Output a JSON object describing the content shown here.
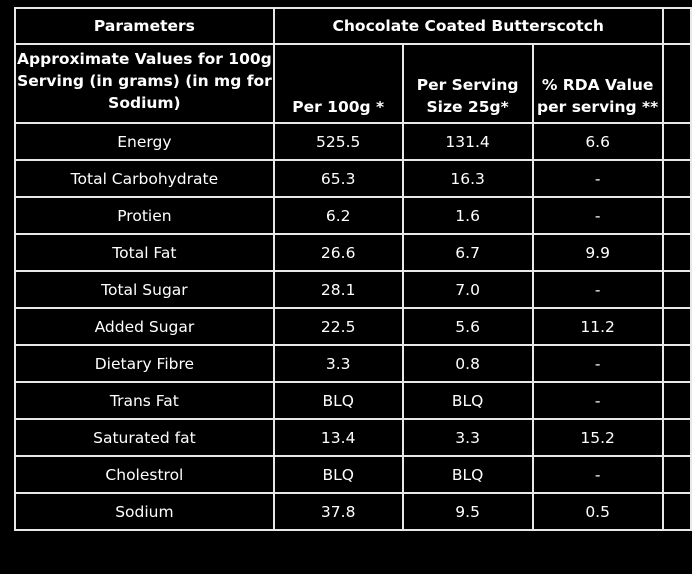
{
  "header": {
    "parameters": "Parameters",
    "product": "Chocolate Coated Butterscotch",
    "approx_note": "Approximate Values for 100g\nServing (in grams) (in mg for\nSodium)",
    "per_100g": "Per 100g *",
    "per_serving": "Per Serving\nSize 25g*",
    "rda": "% RDA Value\nper serving **"
  },
  "rows": [
    {
      "name": "Energy",
      "per_100g": "525.5",
      "per_serving": "131.4",
      "rda": "6.6"
    },
    {
      "name": "Total Carbohydrate",
      "per_100g": "65.3",
      "per_serving": "16.3",
      "rda": "-"
    },
    {
      "name": "Protien",
      "per_100g": "6.2",
      "per_serving": "1.6",
      "rda": "-"
    },
    {
      "name": "Total Fat",
      "per_100g": "26.6",
      "per_serving": "6.7",
      "rda": "9.9"
    },
    {
      "name": "Total Sugar",
      "per_100g": "28.1",
      "per_serving": "7.0",
      "rda": "-"
    },
    {
      "name": "Added Sugar",
      "per_100g": "22.5",
      "per_serving": "5.6",
      "rda": "11.2"
    },
    {
      "name": "Dietary Fibre",
      "per_100g": "3.3",
      "per_serving": "0.8",
      "rda": "-"
    },
    {
      "name": "Trans Fat",
      "per_100g": "BLQ",
      "per_serving": "BLQ",
      "rda": "-"
    },
    {
      "name": "Saturated fat",
      "per_100g": "13.4",
      "per_serving": "3.3",
      "rda": "15.2"
    },
    {
      "name": "Cholestrol",
      "per_100g": "BLQ",
      "per_serving": "BLQ",
      "rda": "-"
    },
    {
      "name": "Sodium",
      "per_100g": "37.8",
      "per_serving": "9.5",
      "rda": "0.5"
    }
  ]
}
